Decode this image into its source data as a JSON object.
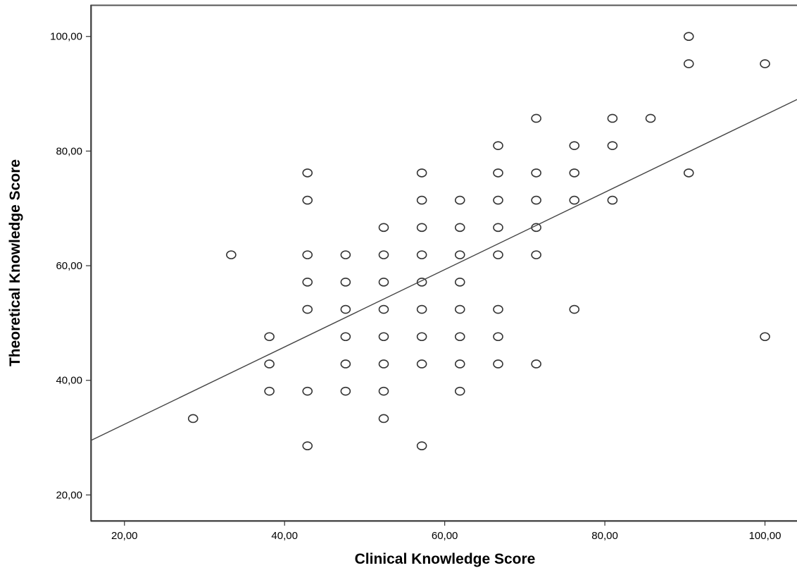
{
  "chart_data": {
    "type": "scatter",
    "xlabel": "Clinical Knowledge Score",
    "ylabel": "Theoretical Knowledge Score",
    "xlim": [
      15.8,
      104.0
    ],
    "ylim": [
      15.5,
      105.5
    ],
    "x_ticks": [
      20,
      40,
      60,
      80,
      100
    ],
    "y_ticks": [
      20,
      40,
      60,
      80,
      100
    ],
    "x_tick_labels": [
      "20,00",
      "40,00",
      "60,00",
      "80,00",
      "100,00"
    ],
    "y_tick_labels": [
      "20,00",
      "40,00",
      "60,00",
      "80,00",
      "100,00"
    ],
    "grid": false,
    "legend": "none",
    "marker": "open-circle",
    "point_color": "#333333",
    "line_color": "#444444",
    "series": [
      {
        "points": [
          [
            28.57,
            33.33
          ],
          [
            33.33,
            61.9
          ],
          [
            38.1,
            47.62
          ],
          [
            38.1,
            42.86
          ],
          [
            38.1,
            38.1
          ],
          [
            42.86,
            76.19
          ],
          [
            42.86,
            71.43
          ],
          [
            42.86,
            61.9
          ],
          [
            42.86,
            57.14
          ],
          [
            42.86,
            52.38
          ],
          [
            42.86,
            38.1
          ],
          [
            42.86,
            28.57
          ],
          [
            47.62,
            61.9
          ],
          [
            47.62,
            57.14
          ],
          [
            47.62,
            52.38
          ],
          [
            47.62,
            47.62
          ],
          [
            47.62,
            42.86
          ],
          [
            47.62,
            38.1
          ],
          [
            52.38,
            66.67
          ],
          [
            52.38,
            61.9
          ],
          [
            52.38,
            57.14
          ],
          [
            52.38,
            52.38
          ],
          [
            52.38,
            47.62
          ],
          [
            52.38,
            42.86
          ],
          [
            52.38,
            38.1
          ],
          [
            52.38,
            33.33
          ],
          [
            57.14,
            76.19
          ],
          [
            57.14,
            71.43
          ],
          [
            57.14,
            66.67
          ],
          [
            57.14,
            61.9
          ],
          [
            57.14,
            57.14
          ],
          [
            57.14,
            52.38
          ],
          [
            57.14,
            47.62
          ],
          [
            57.14,
            42.86
          ],
          [
            57.14,
            28.57
          ],
          [
            61.9,
            71.43
          ],
          [
            61.9,
            66.67
          ],
          [
            61.9,
            61.9
          ],
          [
            61.9,
            57.14
          ],
          [
            61.9,
            52.38
          ],
          [
            61.9,
            47.62
          ],
          [
            61.9,
            42.86
          ],
          [
            61.9,
            38.1
          ],
          [
            66.67,
            80.95
          ],
          [
            66.67,
            76.19
          ],
          [
            66.67,
            71.43
          ],
          [
            66.67,
            66.67
          ],
          [
            66.67,
            61.9
          ],
          [
            66.67,
            52.38
          ],
          [
            66.67,
            47.62
          ],
          [
            66.67,
            42.86
          ],
          [
            71.43,
            85.71
          ],
          [
            71.43,
            76.19
          ],
          [
            71.43,
            71.43
          ],
          [
            71.43,
            66.67
          ],
          [
            71.43,
            61.9
          ],
          [
            71.43,
            42.86
          ],
          [
            76.19,
            80.95
          ],
          [
            76.19,
            76.19
          ],
          [
            76.19,
            71.43
          ],
          [
            76.19,
            52.38
          ],
          [
            80.95,
            85.71
          ],
          [
            80.95,
            80.95
          ],
          [
            80.95,
            71.43
          ],
          [
            85.71,
            85.71
          ],
          [
            90.48,
            100.0
          ],
          [
            90.48,
            95.24
          ],
          [
            90.48,
            76.19
          ],
          [
            100.0,
            95.24
          ],
          [
            100.0,
            47.62
          ]
        ]
      }
    ],
    "fit_line": {
      "type": "linear",
      "x_start": 15.8,
      "y_start": 29.5,
      "x_end": 104.0,
      "y_end": 89.0
    }
  }
}
